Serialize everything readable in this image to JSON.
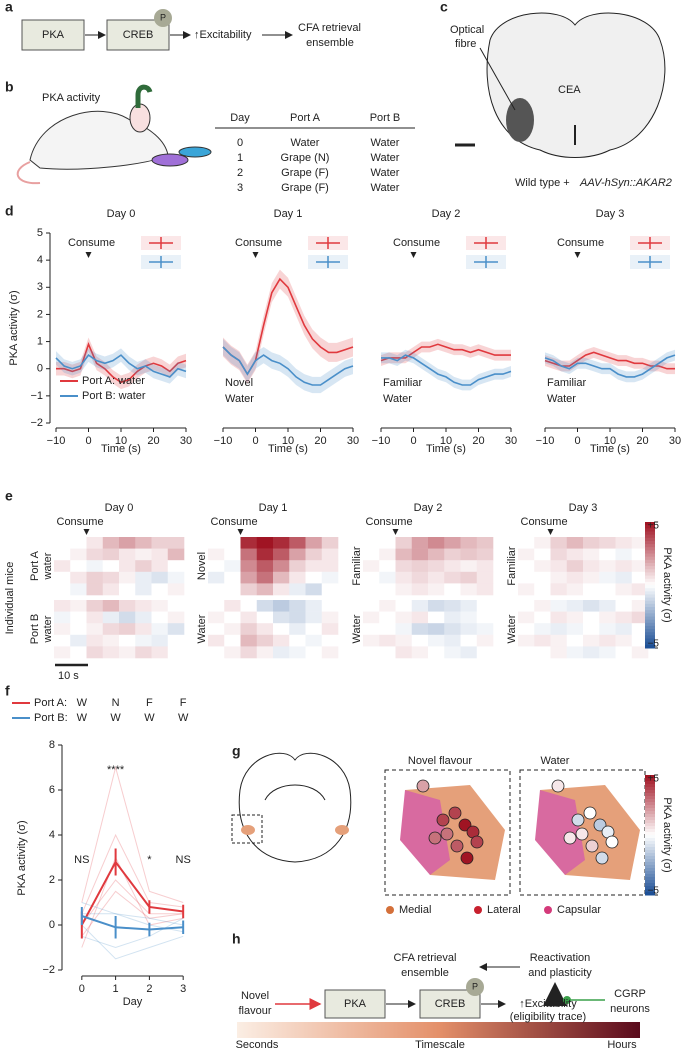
{
  "panel_labels": [
    "a",
    "b",
    "c",
    "d",
    "e",
    "f",
    "g",
    "h"
  ],
  "a": {
    "nodes": [
      "PKA",
      "CREB",
      "↑Excitability",
      [
        "CFA retrieval",
        "ensemble"
      ]
    ],
    "phospho": "P"
  },
  "b": {
    "label": "PKA activity",
    "table": {
      "header": [
        "Day",
        "Port A",
        "Port B"
      ],
      "rows": [
        [
          "0",
          "Water",
          "Water"
        ],
        [
          "1",
          "Grape (N)",
          "Water"
        ],
        [
          "2",
          "Grape (F)",
          "Water"
        ],
        [
          "3",
          "Grape (F)",
          "Water"
        ]
      ]
    }
  },
  "c": {
    "labels": [
      [
        "Optical",
        "fibre"
      ],
      "CEA"
    ],
    "caption": [
      "Wild type + ",
      "AAV-hSyn::AKAR2"
    ]
  },
  "d": {
    "type": "line",
    "y_label": "PKA activity (σ)",
    "x_label": "Time (s)",
    "event": "Consume",
    "legend": [
      "Port A: water",
      "Port B: water"
    ],
    "colors": [
      "#e0393e",
      "#4a8fc9"
    ],
    "x": [
      -10,
      -7.5,
      -5,
      -2.5,
      0,
      2.5,
      5,
      7.5,
      10,
      12.5,
      15,
      17.5,
      20,
      22.5,
      25,
      27.5,
      30
    ],
    "xlim": [
      -10,
      30
    ],
    "xticks": [
      {
        "value": -10,
        "label": "−10"
      },
      0,
      10,
      20,
      30
    ],
    "ylim": [
      -2,
      5
    ],
    "yticks": [
      {
        "value": -2,
        "label": "−2"
      },
      {
        "value": -1,
        "label": "−1"
      },
      0,
      1,
      2,
      3,
      4,
      5
    ],
    "panels": [
      {
        "title": "Day 0",
        "notes": [],
        "series": [
          {
            "values": [
              0,
              0,
              -0.1,
              0,
              0.9,
              0.2,
              0,
              -0.3,
              -0.5,
              -0.4,
              -0.1,
              0.1,
              0.2,
              0.1,
              -0.1,
              0.2,
              0.3
            ],
            "error": 0.25
          },
          {
            "values": [
              0.4,
              0.1,
              0,
              0.1,
              0.5,
              0.3,
              0.2,
              0.3,
              0.5,
              0.2,
              0,
              0.1,
              -0.1,
              -0.2,
              -0.3,
              0,
              -0.1
            ],
            "error": 0.25
          }
        ]
      },
      {
        "title": "Day 1",
        "notes": [
          "Novel",
          "Water"
        ],
        "series": [
          {
            "values": [
              0.8,
              0.5,
              0.3,
              -0.2,
              0.3,
              1.6,
              2.8,
              3.3,
              3,
              2.3,
              1.6,
              1.1,
              0.8,
              0.6,
              0.6,
              0.7,
              0.8
            ],
            "error": 0.35
          },
          {
            "values": [
              0.8,
              0.5,
              0.3,
              -0.2,
              0.3,
              0.5,
              0.3,
              0.2,
              0,
              -0.3,
              -0.5,
              -0.6,
              -0.6,
              -0.4,
              -0.2,
              0,
              0.1
            ],
            "error": 0.3
          }
        ]
      },
      {
        "title": "Day 2",
        "notes": [
          "Familiar",
          "Water"
        ],
        "series": [
          {
            "values": [
              0.3,
              0.4,
              0.4,
              0.4,
              0.6,
              0.8,
              0.8,
              0.9,
              0.8,
              0.7,
              0.7,
              0.6,
              0.7,
              0.6,
              0.5,
              0.5,
              0.5
            ],
            "error": 0.2
          },
          {
            "values": [
              0.4,
              0.4,
              0.3,
              0.5,
              0.4,
              0.2,
              0,
              -0.2,
              -0.3,
              -0.5,
              -0.6,
              -0.6,
              -0.4,
              -0.3,
              -0.2,
              -0.2,
              -0.1
            ],
            "error": 0.2
          }
        ]
      },
      {
        "title": "Day 3",
        "notes": [
          "Familiar",
          "Water"
        ],
        "series": [
          {
            "values": [
              0.3,
              0.2,
              0.1,
              0.1,
              0.3,
              0.5,
              0.6,
              0.5,
              0.4,
              0.3,
              0.3,
              0.2,
              0.2,
              0.1,
              0.1,
              0,
              0
            ],
            "error": 0.2
          },
          {
            "values": [
              0.4,
              0.3,
              0.1,
              0,
              0.2,
              0.2,
              0.1,
              0,
              0,
              -0.2,
              -0.3,
              -0.3,
              -0.2,
              0,
              0.2,
              0.4,
              0.5
            ],
            "error": 0.2
          }
        ]
      }
    ]
  },
  "e": {
    "titles": [
      "Day 0",
      "Day 1",
      "Day 2",
      "Day 3"
    ],
    "event": "Consume",
    "y_label": "Individual mice",
    "scale_bar": "10 s",
    "row_labels": [
      [
        [
          "Port A",
          "water"
        ],
        [
          "Port B",
          "water"
        ]
      ],
      [
        [
          "Novel"
        ],
        [
          "Water"
        ]
      ],
      [
        [
          "Familiar"
        ],
        [
          "Water"
        ]
      ],
      [
        [
          "Familiar"
        ],
        [
          "Water"
        ]
      ]
    ],
    "colorbar": {
      "lim": [
        -5,
        5
      ],
      "ticks": [
        {
          "value": 5,
          "label": "+5"
        },
        {
          "value": -5,
          "label": "−5"
        }
      ],
      "label": "PKA activity (σ)"
    },
    "heatmaps": [
      [
        [
          [
            0,
            0,
            0.5,
            1.5,
            2,
            1.5,
            1,
            1
          ],
          [
            0,
            0.3,
            0.8,
            1,
            0.5,
            0.3,
            0.5,
            1.5
          ],
          [
            0.5,
            0,
            -0.3,
            0,
            0.5,
            1,
            0.5,
            0
          ],
          [
            0,
            0.5,
            1,
            0.8,
            0.3,
            -0.5,
            -0.8,
            -0.3
          ],
          [
            0,
            -0.3,
            1,
            0.5,
            0,
            -0.5,
            0,
            0.3
          ]
        ],
        [
          [
            0.5,
            0.3,
            1,
            1.5,
            0.8,
            0.5,
            0.3,
            0
          ],
          [
            -0.3,
            0,
            0.5,
            -0.5,
            -1,
            -0.5,
            0,
            0.3
          ],
          [
            0.3,
            0,
            0.3,
            0.8,
            1,
            0.5,
            -0.3,
            -0.8
          ],
          [
            0,
            -0.5,
            0.5,
            0.3,
            0,
            -0.3,
            -0.5,
            0
          ],
          [
            0.3,
            0,
            0.8,
            0.5,
            0.3,
            0.8,
            0.5,
            0
          ]
        ]
      ],
      [
        [
          [
            0,
            0,
            4.5,
            5,
            4.5,
            3.5,
            2,
            1
          ],
          [
            0.3,
            0,
            3,
            4.5,
            3.5,
            2,
            1,
            0.5
          ],
          [
            0,
            -0.3,
            2.5,
            3.5,
            2.5,
            1,
            0.5,
            0.5
          ],
          [
            -0.5,
            0,
            2,
            3,
            1.5,
            0.5,
            0,
            -0.3
          ],
          [
            0,
            0,
            1,
            1.5,
            0.5,
            -0.5,
            -1,
            0
          ]
        ],
        [
          [
            0,
            0.5,
            0,
            -1,
            -1.5,
            -1,
            -0.5,
            0
          ],
          [
            0.3,
            0,
            0.5,
            0,
            -0.8,
            -1,
            -0.5,
            0.3
          ],
          [
            0,
            0.3,
            1,
            0.5,
            0,
            -0.5,
            0,
            0.5
          ],
          [
            0.5,
            0,
            1.5,
            1,
            0.5,
            0,
            -0.3,
            0
          ],
          [
            0,
            0.3,
            0.8,
            0.3,
            -0.5,
            -0.3,
            0,
            0.3
          ]
        ]
      ],
      [
        [
          [
            0,
            0,
            1,
            2,
            2.5,
            2,
            1.5,
            1.2
          ],
          [
            0,
            0.3,
            1.5,
            2,
            1.5,
            1,
            1.2,
            1
          ],
          [
            0.3,
            0,
            0.8,
            1,
            0.8,
            0.5,
            0.3,
            0.5
          ],
          [
            0,
            -0.3,
            0.5,
            0.8,
            0.5,
            0.8,
            1,
            0.5
          ],
          [
            0,
            0,
            0.3,
            0.5,
            0.3,
            0,
            0.3,
            0.5
          ]
        ],
        [
          [
            0,
            0.3,
            0,
            -0.5,
            -1,
            -0.8,
            -0.5,
            0
          ],
          [
            0.3,
            0,
            0.3,
            0.5,
            0,
            -0.5,
            -0.3,
            0
          ],
          [
            0,
            0,
            -0.3,
            -1,
            -1.2,
            -0.8,
            -0.5,
            -0.3
          ],
          [
            0.3,
            0.5,
            0.3,
            0,
            -0.3,
            -0.5,
            0,
            0.3
          ],
          [
            0,
            0,
            0.5,
            0.3,
            0,
            -0.3,
            -0.5,
            0
          ]
        ]
      ],
      [
        [
          [
            0,
            0.3,
            1,
            1.5,
            1,
            0.8,
            0.5,
            0.3
          ],
          [
            0.3,
            0,
            0.8,
            0.5,
            0.3,
            0,
            -0.3,
            0
          ],
          [
            0,
            0.3,
            0.5,
            1,
            0.5,
            0.3,
            0.5,
            0.3
          ],
          [
            0,
            0,
            0.3,
            0.5,
            0.3,
            -0.3,
            -0.5,
            0
          ],
          [
            0.3,
            0,
            0.5,
            0.3,
            0,
            0,
            0.3,
            0.5
          ]
        ],
        [
          [
            0,
            0.3,
            -0.3,
            -0.5,
            -0.8,
            -0.5,
            0,
            0.3
          ],
          [
            0.3,
            0,
            0.5,
            0.3,
            0,
            0.3,
            0.5,
            0.8
          ],
          [
            0,
            -0.3,
            -0.5,
            -0.3,
            0,
            -0.3,
            -0.5,
            0
          ],
          [
            0.3,
            0.5,
            0.3,
            0,
            0.3,
            0.5,
            0.3,
            0
          ],
          [
            0,
            0,
            0.3,
            -0.3,
            -0.5,
            -0.3,
            0,
            0.3
          ]
        ]
      ]
    ]
  },
  "f": {
    "type": "line",
    "x_label": "Day",
    "y_label": "PKA activity (σ)",
    "x": [
      0,
      1,
      2,
      3
    ],
    "xlim": [
      -0.35,
      3.35
    ],
    "xticks": [
      0,
      1,
      2,
      3
    ],
    "ylim": [
      -2,
      8
    ],
    "yticks": [
      {
        "value": -2,
        "label": "−2"
      },
      0,
      2,
      4,
      6,
      8
    ],
    "series": [
      {
        "name": "Port A:",
        "codes": [
          "W",
          "N",
          "F",
          "F"
        ],
        "color": "#e0393e",
        "values": [
          0,
          2.8,
          0.8,
          0.6
        ],
        "errors": [
          0.6,
          0.6,
          0.3,
          0.3
        ],
        "individual": [
          [
            0,
            2,
            0.5,
            0.5
          ],
          [
            0.5,
            4,
            1,
            0.8
          ],
          [
            -0.5,
            1.5,
            0.3,
            0.5
          ],
          [
            1,
            7,
            1.5,
            1
          ],
          [
            -1,
            3,
            0,
            0.3
          ]
        ]
      },
      {
        "name": "Port B:",
        "codes": [
          "W",
          "W",
          "W",
          "W"
        ],
        "color": "#4a8fc9",
        "values": [
          0.4,
          -0.1,
          -0.2,
          -0.1
        ],
        "errors": [
          0.4,
          0.5,
          0.3,
          0.3
        ],
        "individual": [
          [
            0.5,
            0.5,
            0,
            -0.3
          ],
          [
            -0.5,
            -1,
            -0.5,
            0.3
          ],
          [
            1,
            0.5,
            0.3,
            0
          ],
          [
            0,
            -1.5,
            -1,
            -0.5
          ]
        ]
      }
    ],
    "annotations": [
      "NS",
      "****",
      "*",
      "NS"
    ]
  },
  "g": {
    "titles": [
      "Novel flavour",
      "Water"
    ],
    "legend": [
      {
        "name": "Medial",
        "color": "#d4703a"
      },
      {
        "name": "Lateral",
        "color": "#c8202e"
      },
      {
        "name": "Capsular",
        "color": "#d43a7a"
      }
    ],
    "dots": [
      [
        2,
        4,
        4,
        5,
        3,
        4.5,
        3.5,
        5,
        4,
        3
      ],
      [
        0.5,
        -1,
        0,
        -1.5,
        0.5,
        -0.5,
        1,
        -1,
        0,
        0.5
      ]
    ],
    "colorbar": {
      "lim": [
        -5,
        5
      ],
      "ticks": [
        {
          "value": 5,
          "label": "+5"
        },
        {
          "value": -5,
          "label": "−5"
        }
      ],
      "label": "PKA activity (σ)"
    }
  },
  "h": {
    "nodes": [
      [
        "CFA retrieval",
        "ensemble"
      ],
      [
        "Reactivation",
        "and plasticity"
      ],
      [
        "CGRP",
        "neurons"
      ],
      [
        "Novel",
        "flavour"
      ],
      "PKA",
      "CREB",
      [
        "↑Excitability",
        "(eligibility trace)"
      ]
    ],
    "phospho": "P",
    "timescale": [
      "Seconds",
      "Timescale",
      "Hours"
    ]
  }
}
